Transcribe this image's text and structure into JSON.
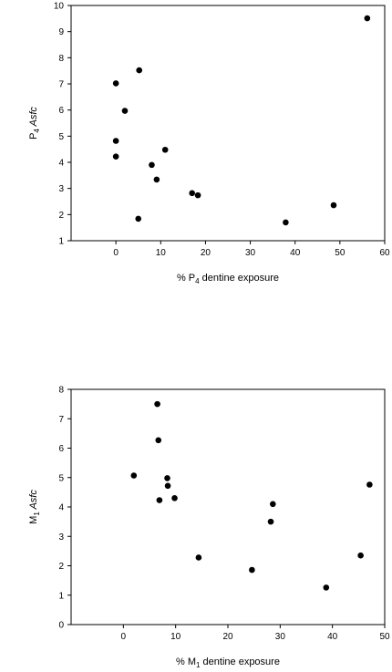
{
  "chart_data": [
    {
      "type": "scatter",
      "xlabel": {
        "prefix": "% P",
        "sub": "4",
        "suffix": " dentine exposure"
      },
      "ylabel": {
        "prefix": "P",
        "sub": "4",
        "italic": " Asfc"
      },
      "xlim": [
        -10,
        60
      ],
      "ylim": [
        1,
        10
      ],
      "xticks": [
        0,
        10,
        20,
        30,
        40,
        50,
        60
      ],
      "yticks": [
        1,
        2,
        3,
        4,
        5,
        6,
        7,
        8,
        9,
        10
      ],
      "grid": false,
      "points": [
        {
          "x": 0,
          "y": 7.02
        },
        {
          "x": 0,
          "y": 4.82
        },
        {
          "x": 0,
          "y": 4.22
        },
        {
          "x": 2,
          "y": 5.97
        },
        {
          "x": 5,
          "y": 1.84
        },
        {
          "x": 5.2,
          "y": 7.52
        },
        {
          "x": 8,
          "y": 3.9
        },
        {
          "x": 9.1,
          "y": 3.34
        },
        {
          "x": 11,
          "y": 4.48
        },
        {
          "x": 17,
          "y": 2.82
        },
        {
          "x": 18.3,
          "y": 2.74
        },
        {
          "x": 37.9,
          "y": 1.7
        },
        {
          "x": 48.6,
          "y": 2.36
        },
        {
          "x": 56.1,
          "y": 9.51
        }
      ]
    },
    {
      "type": "scatter",
      "xlabel": {
        "prefix": "% M",
        "sub": "1",
        "suffix": " dentine exposure"
      },
      "ylabel": {
        "prefix": "M",
        "sub": "1",
        "italic": " Asfc"
      },
      "xlim": [
        -10,
        50
      ],
      "ylim": [
        0,
        8
      ],
      "xticks": [
        0,
        10,
        20,
        30,
        40,
        50
      ],
      "yticks": [
        0,
        1,
        2,
        3,
        4,
        5,
        6,
        7,
        8
      ],
      "grid": false,
      "points": [
        {
          "x": 2.0,
          "y": 5.07
        },
        {
          "x": 6.5,
          "y": 7.5
        },
        {
          "x": 6.7,
          "y": 6.27
        },
        {
          "x": 6.9,
          "y": 4.23
        },
        {
          "x": 8.4,
          "y": 4.98
        },
        {
          "x": 8.5,
          "y": 4.72
        },
        {
          "x": 9.8,
          "y": 4.3
        },
        {
          "x": 14.4,
          "y": 2.28
        },
        {
          "x": 24.6,
          "y": 1.86
        },
        {
          "x": 28.2,
          "y": 3.5
        },
        {
          "x": 28.6,
          "y": 4.1
        },
        {
          "x": 38.8,
          "y": 1.26
        },
        {
          "x": 45.4,
          "y": 2.35
        },
        {
          "x": 47.1,
          "y": 4.76
        }
      ]
    }
  ]
}
